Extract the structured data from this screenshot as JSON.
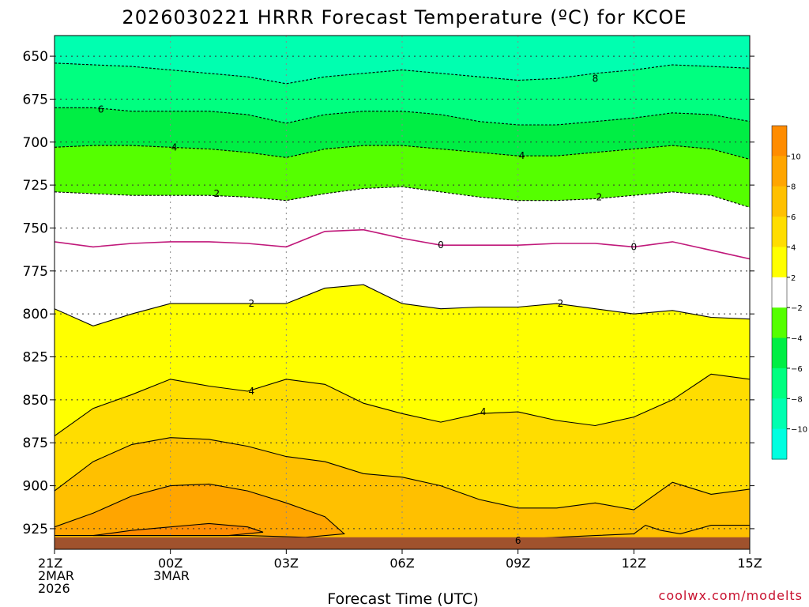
{
  "chart_data": {
    "type": "heatmap",
    "title": "2026030221 HRRR Forecast Temperature (ºC) for KCOE",
    "xlabel": "Forecast Time (UTC)",
    "ylabel": "",
    "credit": "coolwx.com/modelts",
    "x_ticks": [
      {
        "h": 0,
        "lines": [
          "21Z",
          "2MAR",
          "2026"
        ]
      },
      {
        "h": 3,
        "lines": [
          "00Z",
          "3MAR"
        ]
      },
      {
        "h": 6,
        "lines": [
          "03Z"
        ]
      },
      {
        "h": 9,
        "lines": [
          "06Z"
        ]
      },
      {
        "h": 12,
        "lines": [
          "09Z"
        ]
      },
      {
        "h": 15,
        "lines": [
          "12Z"
        ]
      },
      {
        "h": 18,
        "lines": [
          "15Z"
        ]
      }
    ],
    "y_ticks": [
      650,
      675,
      700,
      725,
      750,
      775,
      800,
      825,
      850,
      875,
      900,
      925
    ],
    "xlim_hours": [
      0,
      18
    ],
    "ylim_hpa": [
      937,
      638
    ],
    "surface_hpa": 930,
    "colorbar": {
      "labels": [
        "10",
        "8",
        "6",
        "4",
        "2",
        "−2",
        "−4",
        "−6",
        "−8",
        "−10"
      ],
      "colors": [
        "#ff8c00",
        "#ffa500",
        "#ffc000",
        "#ffdd00",
        "#ffff00",
        "#ffffff",
        "#55ff00",
        "#00ee44",
        "#00ff80",
        "#00ffb0",
        "#00ffe0"
      ],
      "ranges": [
        [
          10,
          12
        ],
        [
          8,
          10
        ],
        [
          6,
          8
        ],
        [
          4,
          6
        ],
        [
          2,
          4
        ],
        [
          -2,
          2
        ],
        [
          -4,
          -2
        ],
        [
          -6,
          -4
        ],
        [
          -8,
          -6
        ],
        [
          -10,
          -8
        ],
        [
          -12,
          -10
        ]
      ]
    },
    "contours": [
      {
        "level": -8,
        "dashed": true,
        "hours": [
          0,
          1,
          2,
          3,
          4,
          5,
          6,
          7,
          8,
          9,
          10,
          11,
          12,
          13,
          14,
          15,
          16,
          17,
          18
        ],
        "pressure": [
          654,
          655,
          656,
          658,
          660,
          662,
          666,
          662,
          660,
          658,
          660,
          662,
          664,
          663,
          660,
          658,
          655,
          656,
          657
        ],
        "labels": [
          {
            "h": 14,
            "p": 663,
            "text": "8"
          }
        ]
      },
      {
        "level": -6,
        "dashed": true,
        "hours": [
          0,
          1,
          2,
          3,
          4,
          5,
          6,
          7,
          8,
          9,
          10,
          11,
          12,
          13,
          14,
          15,
          16,
          17,
          18
        ],
        "pressure": [
          680,
          680,
          682,
          682,
          682,
          684,
          689,
          684,
          682,
          682,
          684,
          688,
          690,
          690,
          688,
          686,
          683,
          684,
          688
        ],
        "labels": [
          {
            "h": 1.2,
            "p": 681,
            "text": "6"
          }
        ]
      },
      {
        "level": -4,
        "dashed": true,
        "hours": [
          0,
          1,
          2,
          3,
          4,
          5,
          6,
          7,
          8,
          9,
          10,
          11,
          12,
          13,
          14,
          15,
          16,
          17,
          18
        ],
        "pressure": [
          703,
          702,
          702,
          703,
          704,
          706,
          709,
          704,
          702,
          702,
          704,
          706,
          708,
          708,
          706,
          704,
          702,
          704,
          710
        ],
        "labels": [
          {
            "h": 3.1,
            "p": 703,
            "text": "4"
          },
          {
            "h": 12.1,
            "p": 708,
            "text": "4"
          }
        ]
      },
      {
        "level": -2,
        "dashed": true,
        "hours": [
          0,
          1,
          2,
          3,
          4,
          5,
          6,
          7,
          8,
          9,
          10,
          11,
          12,
          13,
          14,
          15,
          16,
          17,
          18
        ],
        "pressure": [
          729,
          730,
          731,
          731,
          731,
          732,
          734,
          730,
          727,
          726,
          729,
          732,
          734,
          734,
          733,
          731,
          729,
          731,
          738
        ],
        "labels": [
          {
            "h": 4.2,
            "p": 730,
            "text": "2"
          },
          {
            "h": 14.1,
            "p": 732,
            "text": "2"
          }
        ]
      },
      {
        "level": 0,
        "dashed": false,
        "hours": [
          0,
          1,
          2,
          3,
          4,
          5,
          6,
          7,
          8,
          9,
          10,
          11,
          12,
          13,
          14,
          15,
          16,
          17,
          18
        ],
        "pressure": [
          758,
          761,
          759,
          758,
          758,
          759,
          761,
          752,
          751,
          756,
          760,
          760,
          760,
          759,
          759,
          761,
          758,
          763,
          768
        ],
        "labels": [
          {
            "h": 10,
            "p": 760,
            "text": "0"
          },
          {
            "h": 15,
            "p": 761,
            "text": "0"
          }
        ]
      },
      {
        "level": 2,
        "dashed": false,
        "hours": [
          0,
          1,
          2,
          3,
          4,
          5,
          6,
          7,
          8,
          9,
          10,
          11,
          12,
          13,
          14,
          15,
          16,
          17,
          18
        ],
        "pressure": [
          797,
          807,
          800,
          794,
          794,
          794,
          794,
          785,
          783,
          794,
          797,
          796,
          796,
          794,
          797,
          800,
          798,
          802,
          803
        ],
        "labels": [
          {
            "h": 5.1,
            "p": 794,
            "text": "2"
          },
          {
            "h": 13.1,
            "p": 794,
            "text": "2"
          }
        ]
      },
      {
        "level": 4,
        "dashed": false,
        "hours": [
          0,
          1,
          2,
          3,
          4,
          5,
          6,
          7,
          8,
          9,
          10,
          11,
          12,
          13,
          14,
          15,
          16,
          17,
          18
        ],
        "pressure": [
          871,
          855,
          847,
          838,
          842,
          845,
          838,
          841,
          852,
          858,
          863,
          858,
          857,
          862,
          865,
          860,
          850,
          835,
          838
        ],
        "labels": [
          {
            "h": 5.1,
            "p": 845,
            "text": "4"
          },
          {
            "h": 11.1,
            "p": 857,
            "text": "4"
          }
        ]
      },
      {
        "level": 6,
        "dashed": false,
        "hours": [
          0,
          1,
          2,
          3,
          4,
          5,
          6,
          7,
          8,
          9,
          10,
          11,
          12,
          13,
          14,
          15,
          16,
          17,
          18
        ],
        "pressure": [
          903,
          886,
          876,
          872,
          873,
          877,
          883,
          886,
          893,
          895,
          900,
          908,
          913,
          913,
          910,
          914,
          898,
          905,
          902
        ],
        "labels": []
      },
      {
        "level": 8,
        "dashed": false,
        "hours": [
          0,
          1,
          2,
          3,
          4,
          5,
          6,
          7,
          7.5,
          6.5,
          5,
          4,
          3,
          2,
          1,
          0
        ],
        "pressure": [
          924,
          916,
          906,
          900,
          899,
          903,
          910,
          918,
          928,
          930,
          929,
          929,
          929,
          929,
          929,
          929
        ],
        "labels": []
      },
      {
        "level": 10,
        "dashed": false,
        "hours": [
          1,
          2,
          3,
          4,
          5,
          5.4,
          4.5,
          3,
          2,
          1
        ],
        "pressure": [
          929,
          926,
          924,
          922,
          924,
          927,
          929,
          929,
          929,
          929
        ],
        "labels": []
      },
      {
        "level": 6,
        "dashed": false,
        "hours": [
          9,
          11,
          12,
          13,
          14,
          15,
          15.3,
          15.7,
          16.2,
          17,
          18
        ],
        "pressure": [
          931,
          932,
          931,
          930,
          929,
          928,
          923,
          926,
          928,
          923,
          923
        ],
        "labels": [
          {
            "h": 12,
            "p": 932,
            "text": "6"
          }
        ]
      }
    ]
  }
}
